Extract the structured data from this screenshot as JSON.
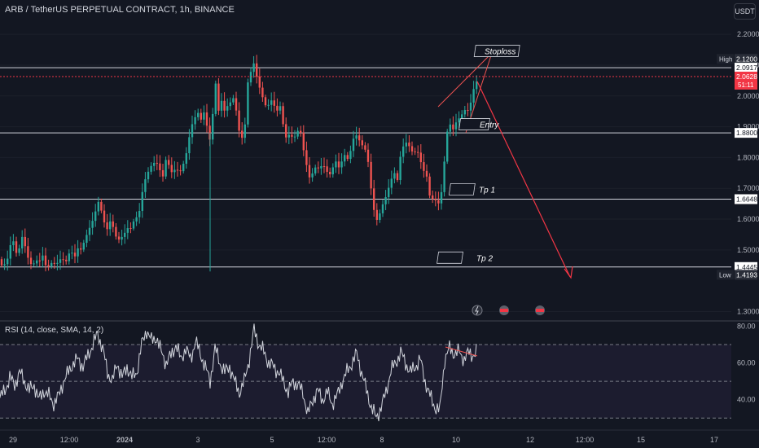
{
  "header": {
    "title": "ARB / TetherUS PERPETUAL CONTRACT, 1h, BINANCE",
    "currency_button": "USDT"
  },
  "rsi_panel": {
    "title": "RSI (14, close, SMA, 14, 2)",
    "ticks": [
      "80.00",
      "60.00",
      "40.00"
    ]
  },
  "chart_data": [
    {
      "type": "candlestick",
      "x_labels": [
        "29",
        "12:00",
        "2024",
        "3",
        "5",
        "12:00",
        "8",
        "10",
        "12",
        "12:00",
        "15",
        "17"
      ],
      "y_ticks": [
        "2.2000",
        "2.1000",
        "2.0000",
        "1.9000",
        "1.8000",
        "1.7000",
        "1.6000",
        "1.5000",
        "1.3000"
      ],
      "ylim": [
        1.28,
        2.24
      ],
      "price_labels": [
        {
          "tag": "High",
          "value": "2.1200"
        },
        {
          "tag": "",
          "value": "2.0917"
        },
        {
          "tag": "",
          "value": "2.0628",
          "sub": "51:11"
        },
        {
          "tag": "",
          "value": "1.8800"
        },
        {
          "tag": "",
          "value": "1.6648"
        },
        {
          "tag": "",
          "value": "1.4445"
        },
        {
          "tag": "Low",
          "value": "1.4193"
        }
      ],
      "horizontal_levels": [
        2.0917,
        1.88,
        1.6648,
        1.4445
      ],
      "current_price": 2.0628,
      "annotations": [
        "Stoploss",
        "Entry",
        "Tp 1",
        "Tp 2"
      ],
      "colors": {
        "up": "#26a69a",
        "down": "#ef5350",
        "level_line": "#d1d4dc",
        "projection": "#f23645"
      },
      "price_path": [
        [
          0,
          1.47
        ],
        [
          3,
          1.44
        ],
        [
          6,
          1.45
        ],
        [
          9,
          1.46
        ],
        [
          12,
          1.5
        ],
        [
          16,
          1.52
        ],
        [
          20,
          1.48
        ],
        [
          24,
          1.5
        ],
        [
          28,
          1.55
        ],
        [
          32,
          1.5
        ],
        [
          36,
          1.47
        ],
        [
          40,
          1.46
        ],
        [
          44,
          1.48
        ],
        [
          48,
          1.47
        ],
        [
          52,
          1.49
        ],
        [
          56,
          1.45
        ],
        [
          60,
          1.44
        ],
        [
          64,
          1.45
        ],
        [
          68,
          1.44
        ],
        [
          72,
          1.45
        ],
        [
          76,
          1.47
        ],
        [
          80,
          1.45
        ],
        [
          84,
          1.49
        ],
        [
          88,
          1.5
        ],
        [
          92,
          1.49
        ],
        [
          96,
          1.52
        ],
        [
          100,
          1.51
        ],
        [
          104,
          1.54
        ],
        [
          108,
          1.56
        ],
        [
          112,
          1.58
        ],
        [
          116,
          1.6
        ],
        [
          120,
          1.65
        ],
        [
          124,
          1.62
        ],
        [
          128,
          1.58
        ],
        [
          132,
          1.56
        ],
        [
          136,
          1.6
        ],
        [
          140,
          1.57
        ],
        [
          144,
          1.54
        ],
        [
          148,
          1.55
        ],
        [
          152,
          1.56
        ],
        [
          156,
          1.58
        ],
        [
          160,
          1.57
        ],
        [
          164,
          1.59
        ],
        [
          168,
          1.6
        ],
        [
          172,
          1.62
        ],
        [
          176,
          1.7
        ],
        [
          180,
          1.73
        ],
        [
          184,
          1.76
        ],
        [
          188,
          1.78
        ],
        [
          192,
          1.79
        ],
        [
          196,
          1.77
        ],
        [
          200,
          1.75
        ],
        [
          204,
          1.81
        ],
        [
          208,
          1.78
        ],
        [
          212,
          1.75
        ],
        [
          216,
          1.77
        ],
        [
          220,
          1.74
        ],
        [
          224,
          1.76
        ],
        [
          228,
          1.79
        ],
        [
          232,
          1.85
        ],
        [
          236,
          1.9
        ],
        [
          240,
          1.93
        ],
        [
          244,
          1.95
        ],
        [
          248,
          1.92
        ],
        [
          252,
          1.98
        ],
        [
          256,
          1.85
        ],
        [
          260,
          1.9
        ],
        [
          264,
          2.07
        ],
        [
          268,
          1.95
        ],
        [
          272,
          1.98
        ],
        [
          276,
          1.94
        ],
        [
          280,
          1.96
        ],
        [
          284,
          1.97
        ],
        [
          288,
          1.99
        ],
        [
          292,
          1.9
        ],
        [
          296,
          1.86
        ],
        [
          300,
          1.88
        ],
        [
          304,
          2.05
        ],
        [
          308,
          2.09
        ],
        [
          312,
          2.12
        ],
        [
          316,
          2.06
        ],
        [
          320,
          2.02
        ],
        [
          324,
          1.98
        ],
        [
          328,
          1.95
        ],
        [
          332,
          1.98
        ],
        [
          336,
          1.96
        ],
        [
          340,
          1.94
        ],
        [
          344,
          1.96
        ],
        [
          348,
          1.9
        ],
        [
          352,
          1.86
        ],
        [
          356,
          1.89
        ],
        [
          360,
          1.87
        ],
        [
          364,
          1.89
        ],
        [
          368,
          1.91
        ],
        [
          372,
          1.84
        ],
        [
          376,
          1.78
        ],
        [
          380,
          1.73
        ],
        [
          384,
          1.74
        ],
        [
          388,
          1.76
        ],
        [
          392,
          1.75
        ],
        [
          396,
          1.77
        ],
        [
          400,
          1.76
        ],
        [
          404,
          1.74
        ],
        [
          408,
          1.77
        ],
        [
          412,
          1.8
        ],
        [
          416,
          1.78
        ],
        [
          420,
          1.8
        ],
        [
          424,
          1.82
        ],
        [
          428,
          1.79
        ],
        [
          432,
          1.84
        ],
        [
          436,
          1.87
        ],
        [
          440,
          1.85
        ],
        [
          444,
          1.83
        ],
        [
          448,
          1.82
        ],
        [
          452,
          1.78
        ],
        [
          456,
          1.69
        ],
        [
          460,
          1.62
        ],
        [
          464,
          1.6
        ],
        [
          468,
          1.65
        ],
        [
          472,
          1.67
        ],
        [
          476,
          1.7
        ],
        [
          480,
          1.73
        ],
        [
          484,
          1.75
        ],
        [
          488,
          1.72
        ],
        [
          492,
          1.8
        ],
        [
          496,
          1.83
        ],
        [
          500,
          1.84
        ],
        [
          504,
          1.82
        ],
        [
          508,
          1.81
        ],
        [
          512,
          1.83
        ],
        [
          516,
          1.8
        ],
        [
          520,
          1.77
        ],
        [
          524,
          1.75
        ],
        [
          528,
          1.68
        ],
        [
          532,
          1.67
        ],
        [
          536,
          1.66
        ],
        [
          540,
          1.64
        ],
        [
          544,
          1.72
        ],
        [
          548,
          1.86
        ],
        [
          552,
          1.9
        ],
        [
          556,
          1.88
        ],
        [
          560,
          1.91
        ],
        [
          564,
          1.93
        ],
        [
          568,
          1.95
        ],
        [
          572,
          1.97
        ],
        [
          576,
          1.96
        ],
        [
          580,
          2.02
        ],
        [
          584,
          2.05
        ],
        [
          588,
          2.06
        ]
      ]
    },
    {
      "type": "line",
      "name": "RSI",
      "ylim": [
        27,
        82
      ],
      "guide_levels": [
        70,
        50,
        30
      ],
      "path": [
        [
          0,
          41
        ],
        [
          6,
          45
        ],
        [
          12,
          52
        ],
        [
          18,
          48
        ],
        [
          24,
          55
        ],
        [
          30,
          50
        ],
        [
          36,
          45
        ],
        [
          42,
          48
        ],
        [
          48,
          40
        ],
        [
          54,
          45
        ],
        [
          60,
          42
        ],
        [
          66,
          38
        ],
        [
          72,
          42
        ],
        [
          78,
          50
        ],
        [
          84,
          55
        ],
        [
          90,
          60
        ],
        [
          96,
          62
        ],
        [
          102,
          58
        ],
        [
          108,
          64
        ],
        [
          114,
          70
        ],
        [
          120,
          76
        ],
        [
          126,
          68
        ],
        [
          132,
          55
        ],
        [
          138,
          50
        ],
        [
          144,
          60
        ],
        [
          150,
          52
        ],
        [
          156,
          58
        ],
        [
          162,
          52
        ],
        [
          168,
          55
        ],
        [
          174,
          70
        ],
        [
          180,
          78
        ],
        [
          186,
          72
        ],
        [
          192,
          74
        ],
        [
          198,
          66
        ],
        [
          204,
          60
        ],
        [
          210,
          64
        ],
        [
          216,
          70
        ],
        [
          222,
          62
        ],
        [
          228,
          68
        ],
        [
          234,
          62
        ],
        [
          240,
          72
        ],
        [
          246,
          65
        ],
        [
          252,
          58
        ],
        [
          258,
          50
        ],
        [
          264,
          68
        ],
        [
          270,
          60
        ],
        [
          276,
          55
        ],
        [
          282,
          58
        ],
        [
          288,
          50
        ],
        [
          294,
          44
        ],
        [
          300,
          50
        ],
        [
          306,
          62
        ],
        [
          312,
          78
        ],
        [
          318,
          70
        ],
        [
          324,
          66
        ],
        [
          330,
          60
        ],
        [
          336,
          58
        ],
        [
          342,
          55
        ],
        [
          348,
          50
        ],
        [
          354,
          44
        ],
        [
          360,
          50
        ],
        [
          366,
          48
        ],
        [
          372,
          44
        ],
        [
          378,
          32
        ],
        [
          384,
          40
        ],
        [
          390,
          45
        ],
        [
          396,
          40
        ],
        [
          402,
          44
        ],
        [
          408,
          38
        ],
        [
          414,
          42
        ],
        [
          420,
          50
        ],
        [
          426,
          55
        ],
        [
          432,
          60
        ],
        [
          438,
          65
        ],
        [
          444,
          55
        ],
        [
          450,
          45
        ],
        [
          456,
          36
        ],
        [
          462,
          30
        ],
        [
          468,
          36
        ],
        [
          474,
          44
        ],
        [
          480,
          56
        ],
        [
          486,
          60
        ],
        [
          492,
          66
        ],
        [
          498,
          60
        ],
        [
          504,
          55
        ],
        [
          510,
          58
        ],
        [
          516,
          62
        ],
        [
          522,
          50
        ],
        [
          528,
          42
        ],
        [
          534,
          36
        ],
        [
          540,
          34
        ],
        [
          546,
          62
        ],
        [
          552,
          68
        ],
        [
          558,
          65
        ],
        [
          564,
          66
        ],
        [
          570,
          62
        ],
        [
          576,
          66
        ],
        [
          582,
          64
        ],
        [
          586,
          66
        ]
      ]
    }
  ]
}
